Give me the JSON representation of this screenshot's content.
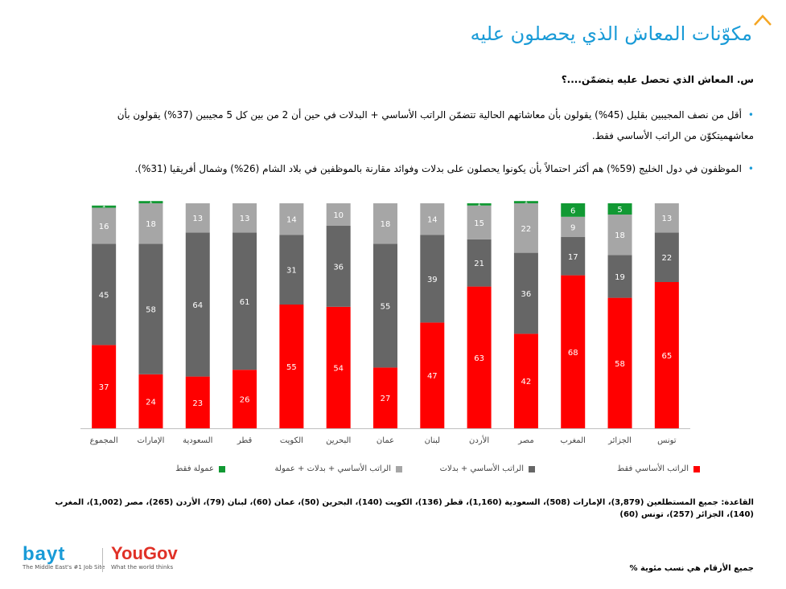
{
  "title": "مكوّنات المعاش الذي يحصلون عليه",
  "question": "س. المعاش الذي تحصل عليه يتضمّن....؟",
  "bullets": [
    "أقل من نصف المجيبين بقليل (45%) يقولون بأن معاشاتهم الحالية تتضمّن الراتب الأساسي + البدلات في حين أن 2 من بين كل 5 مجيبين (37%) يقولون بأن معاشهميتكوّن من الراتب الأساسي فقط.",
    "الموظفون في دول الخليج (59%) هم أكثر احتمالاً بأن يكونوا يحصلون على بدلات وفوائد مقارنة بالموظفين في بلاد الشام (26%) وشمال أفريقيا (31%)."
  ],
  "chart_data": {
    "type": "bar",
    "stacked": true,
    "ylim": [
      0,
      100
    ],
    "categories": [
      "المجموع",
      "الإمارات",
      "السعودية",
      "قطر",
      "الكويت",
      "البحرين",
      "عمان",
      "لبنان",
      "الأردن",
      "مصر",
      "المغرب",
      "الجزائر",
      "تونس"
    ],
    "series": [
      {
        "name": "الراتب الأساسي فقط",
        "color": "#ff0000",
        "values": [
          37,
          24,
          23,
          26,
          55,
          54,
          27,
          47,
          63,
          42,
          68,
          58,
          65
        ]
      },
      {
        "name": "الراتب الأساسي + بدلات",
        "color": "#666666",
        "values": [
          45,
          58,
          64,
          61,
          31,
          36,
          55,
          39,
          21,
          36,
          17,
          19,
          22
        ]
      },
      {
        "name": "الراتب الأساسي + بدلات + عمولة",
        "color": "#a6a6a6",
        "values": [
          16,
          18,
          13,
          13,
          14,
          10,
          18,
          14,
          15,
          22,
          9,
          18,
          13
        ]
      },
      {
        "name": "عمولة فقط",
        "color": "#119933",
        "values": [
          1,
          1,
          0,
          0,
          0,
          0,
          0,
          0,
          1,
          1,
          6,
          5,
          0
        ]
      }
    ],
    "legend_position": "bottom"
  },
  "base_note": "القاعدة: جميع المستطلعين (3,879)، الإمارات (508)، السعودية (1,160)، قطر (136)، الكويت (140)، البحرين (50)، عمان (60)، لبنان (79)، الأردن (265)، مصر (1,002)، المغرب (140)، الجزائر (257)، تونس (60)",
  "pct_note": "جميع الأرقام هي نسب مئوية %",
  "logos": {
    "bayt_word": "bayt",
    "bayt_tag": "The Middle East's #1 Job Site",
    "yougov_word": "YouGov",
    "yougov_tag": "What the world thinks"
  },
  "colors": {
    "accent": "#1a9bd7"
  }
}
